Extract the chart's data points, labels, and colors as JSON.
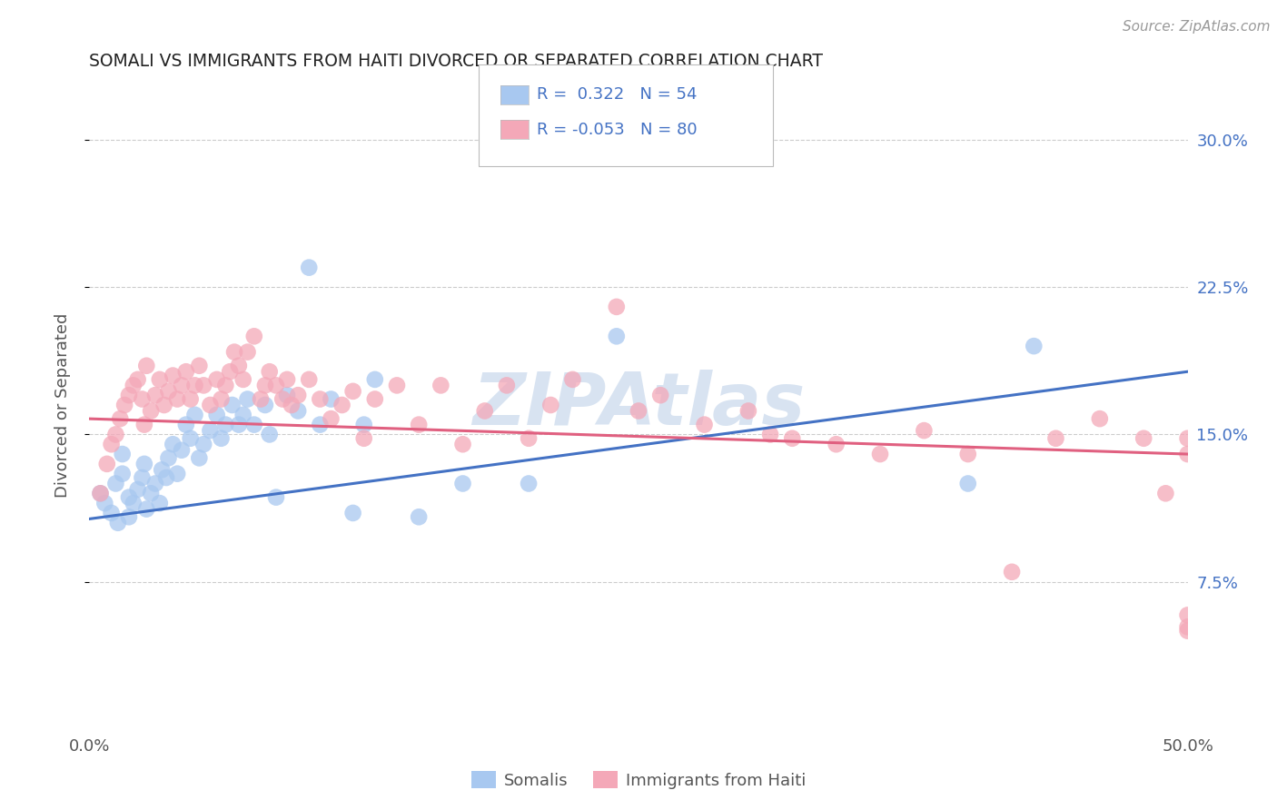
{
  "title": "SOMALI VS IMMIGRANTS FROM HAITI DIVORCED OR SEPARATED CORRELATION CHART",
  "source": "Source: ZipAtlas.com",
  "ylabel": "Divorced or Separated",
  "R1": 0.322,
  "N1": 54,
  "R2": -0.053,
  "N2": 80,
  "color_blue": "#A8C8F0",
  "color_pink": "#F4A8B8",
  "color_blue_line": "#4472C4",
  "color_pink_line": "#E06080",
  "color_blue_text": "#4472C4",
  "watermark_color": "#C8D8EC",
  "background_color": "#FFFFFF",
  "grid_color": "#CCCCCC",
  "legend_label1": "Somalis",
  "legend_label2": "Immigrants from Haiti",
  "ylim": [
    0.0,
    0.33
  ],
  "xlim": [
    0.0,
    0.5
  ],
  "somali_x": [
    0.005,
    0.007,
    0.01,
    0.012,
    0.013,
    0.015,
    0.015,
    0.018,
    0.018,
    0.02,
    0.022,
    0.024,
    0.025,
    0.026,
    0.028,
    0.03,
    0.032,
    0.033,
    0.035,
    0.036,
    0.038,
    0.04,
    0.042,
    0.044,
    0.046,
    0.048,
    0.05,
    0.052,
    0.055,
    0.058,
    0.06,
    0.062,
    0.065,
    0.068,
    0.07,
    0.072,
    0.075,
    0.08,
    0.082,
    0.085,
    0.09,
    0.095,
    0.1,
    0.105,
    0.11,
    0.12,
    0.125,
    0.13,
    0.15,
    0.17,
    0.2,
    0.24,
    0.4,
    0.43
  ],
  "somali_y": [
    0.12,
    0.115,
    0.11,
    0.125,
    0.105,
    0.13,
    0.14,
    0.118,
    0.108,
    0.115,
    0.122,
    0.128,
    0.135,
    0.112,
    0.12,
    0.125,
    0.115,
    0.132,
    0.128,
    0.138,
    0.145,
    0.13,
    0.142,
    0.155,
    0.148,
    0.16,
    0.138,
    0.145,
    0.152,
    0.16,
    0.148,
    0.155,
    0.165,
    0.155,
    0.16,
    0.168,
    0.155,
    0.165,
    0.15,
    0.118,
    0.17,
    0.162,
    0.235,
    0.155,
    0.168,
    0.11,
    0.155,
    0.178,
    0.108,
    0.125,
    0.125,
    0.2,
    0.125,
    0.195
  ],
  "haiti_x": [
    0.005,
    0.008,
    0.01,
    0.012,
    0.014,
    0.016,
    0.018,
    0.02,
    0.022,
    0.024,
    0.025,
    0.026,
    0.028,
    0.03,
    0.032,
    0.034,
    0.036,
    0.038,
    0.04,
    0.042,
    0.044,
    0.046,
    0.048,
    0.05,
    0.052,
    0.055,
    0.058,
    0.06,
    0.062,
    0.064,
    0.066,
    0.068,
    0.07,
    0.072,
    0.075,
    0.078,
    0.08,
    0.082,
    0.085,
    0.088,
    0.09,
    0.092,
    0.095,
    0.1,
    0.105,
    0.11,
    0.115,
    0.12,
    0.125,
    0.13,
    0.14,
    0.15,
    0.16,
    0.17,
    0.18,
    0.19,
    0.2,
    0.21,
    0.22,
    0.24,
    0.25,
    0.26,
    0.28,
    0.3,
    0.31,
    0.32,
    0.34,
    0.36,
    0.38,
    0.4,
    0.42,
    0.44,
    0.46,
    0.48,
    0.49,
    0.5,
    0.5,
    0.5,
    0.5,
    0.5
  ],
  "haiti_y": [
    0.12,
    0.135,
    0.145,
    0.15,
    0.158,
    0.165,
    0.17,
    0.175,
    0.178,
    0.168,
    0.155,
    0.185,
    0.162,
    0.17,
    0.178,
    0.165,
    0.172,
    0.18,
    0.168,
    0.175,
    0.182,
    0.168,
    0.175,
    0.185,
    0.175,
    0.165,
    0.178,
    0.168,
    0.175,
    0.182,
    0.192,
    0.185,
    0.178,
    0.192,
    0.2,
    0.168,
    0.175,
    0.182,
    0.175,
    0.168,
    0.178,
    0.165,
    0.17,
    0.178,
    0.168,
    0.158,
    0.165,
    0.172,
    0.148,
    0.168,
    0.175,
    0.155,
    0.175,
    0.145,
    0.162,
    0.175,
    0.148,
    0.165,
    0.178,
    0.215,
    0.162,
    0.17,
    0.155,
    0.162,
    0.15,
    0.148,
    0.145,
    0.14,
    0.152,
    0.14,
    0.08,
    0.148,
    0.158,
    0.148,
    0.12,
    0.052,
    0.058,
    0.14,
    0.148,
    0.05
  ],
  "blue_line_y0": 0.107,
  "blue_line_y1": 0.182,
  "pink_line_y0": 0.158,
  "pink_line_y1": 0.14
}
